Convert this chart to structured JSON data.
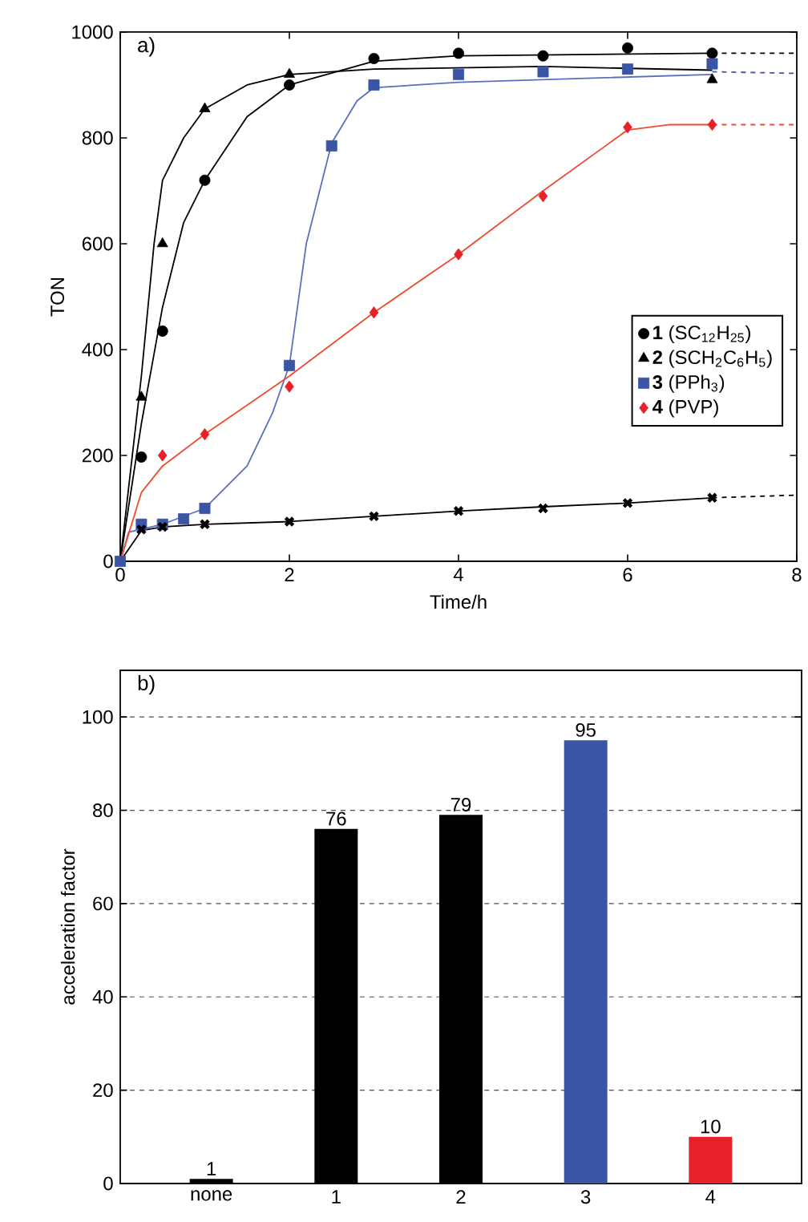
{
  "chart_data": [
    {
      "type": "scatter",
      "title": "a)",
      "xlabel": "Time/h",
      "ylabel": "TON",
      "xlim": [
        0,
        8
      ],
      "ylim": [
        0,
        1000
      ],
      "xticks": [
        0,
        2,
        4,
        6,
        8
      ],
      "yticks": [
        0,
        200,
        400,
        600,
        800,
        1000
      ],
      "grid": false,
      "legend": "center right",
      "series": [
        {
          "name": "**1** (SC$_{12}$H$_{25}$)",
          "type": "scatter",
          "marker": "circle",
          "color": "#000000",
          "x": [
            0.25,
            0.5,
            1,
            2,
            3,
            4,
            5,
            6,
            7
          ],
          "values": [
            197,
            435,
            720,
            900,
            950,
            960,
            955,
            970,
            960
          ]
        },
        {
          "name": "**2** (SCH$_{2}$C$_{6}$H$_{5}$)",
          "type": "scatter",
          "marker": "triangle",
          "color": "#000000",
          "x": [
            0.25,
            0.5,
            1,
            2,
            7
          ],
          "values": [
            310,
            600,
            855,
            920,
            910
          ]
        },
        {
          "name": "**3** (PPh$_{3}$)",
          "type": "scatter",
          "marker": "square",
          "color": "#3a55a5",
          "x": [
            0,
            0.25,
            0.5,
            0.75,
            1,
            2,
            2.5,
            3,
            4,
            5,
            6,
            7
          ],
          "values": [
            0,
            70,
            70,
            80,
            100,
            370,
            785,
            900,
            920,
            925,
            930,
            940
          ]
        },
        {
          "name": "**4** (PVP)",
          "type": "scatter",
          "marker": "diamond",
          "color": "#e8202a",
          "x": [
            0.5,
            1,
            2,
            3,
            4,
            5,
            6,
            7
          ],
          "values": [
            200,
            240,
            330,
            470,
            580,
            690,
            820,
            825
          ]
        },
        {
          "type": "scatter",
          "marker": "cross",
          "color": "#000000",
          "x": [
            0.25,
            0.5,
            1,
            2,
            3,
            4,
            5,
            6,
            7
          ],
          "values": [
            60,
            65,
            70,
            75,
            85,
            95,
            100,
            110,
            120
          ]
        },
        {
          "type": "line",
          "line_style": "solid",
          "color": "#000000",
          "x": [
            0,
            0.25,
            0.5,
            0.75,
            1,
            1.5,
            2,
            3,
            4,
            7
          ],
          "values": [
            0,
            260,
            480,
            640,
            720,
            840,
            900,
            945,
            955,
            960
          ]
        },
        {
          "type": "line",
          "line_style": "solid",
          "color": "#000000",
          "x": [
            0,
            0.25,
            0.4,
            0.5,
            0.75,
            1,
            1.5,
            2,
            3,
            5,
            7
          ],
          "values": [
            0,
            350,
            600,
            720,
            800,
            855,
            900,
            920,
            930,
            935,
            928
          ]
        },
        {
          "type": "line",
          "line_style": "solid",
          "color": "#5a6fc0",
          "x": [
            0,
            0.1,
            0.5,
            1,
            1.5,
            1.8,
            2,
            2.2,
            2.5,
            2.8,
            3,
            4,
            7
          ],
          "values": [
            0,
            55,
            70,
            100,
            180,
            280,
            370,
            600,
            790,
            870,
            895,
            905,
            920
          ]
        },
        {
          "type": "line",
          "line_style": "solid",
          "color": "#f04a30",
          "x": [
            0,
            0.25,
            0.5,
            1,
            2,
            3,
            4,
            5,
            6,
            6.5,
            7
          ],
          "values": [
            0,
            130,
            180,
            240,
            350,
            470,
            580,
            700,
            815,
            825,
            825
          ]
        },
        {
          "type": "line",
          "line_style": "solid",
          "color": "#000000",
          "x": [
            0,
            0.25,
            0.5,
            1,
            2,
            3,
            4,
            5,
            6,
            7
          ],
          "values": [
            0,
            58,
            65,
            70,
            75,
            85,
            95,
            103,
            110,
            120
          ]
        },
        {
          "type": "line",
          "line_style": "dashed",
          "color": "#000000",
          "x": [
            7,
            8
          ],
          "values": [
            960,
            960
          ]
        },
        {
          "type": "line",
          "line_style": "dashed",
          "color": "#3a55a5",
          "x": [
            7,
            8
          ],
          "values": [
            925,
            922
          ]
        },
        {
          "type": "line",
          "line_style": "dashed",
          "color": "#f04a30",
          "x": [
            7,
            8
          ],
          "values": [
            825,
            825
          ]
        },
        {
          "type": "line",
          "line_style": "dashed",
          "color": "#000000",
          "x": [
            7,
            8
          ],
          "values": [
            120,
            125
          ]
        }
      ]
    },
    {
      "type": "bar",
      "title": "b)",
      "ylabel": "acceleration factor",
      "categories": [
        "none",
        "1",
        "2",
        "3",
        "4"
      ],
      "values": [
        1,
        76,
        79,
        95,
        10
      ],
      "colors": [
        "#000000",
        "#000000",
        "#000000",
        "#3a55a5",
        "#e8202a"
      ],
      "ylim": [
        0,
        110
      ],
      "yticks": [
        0,
        20,
        40,
        60,
        80,
        100
      ],
      "grid": "y",
      "data_labels": true
    }
  ]
}
